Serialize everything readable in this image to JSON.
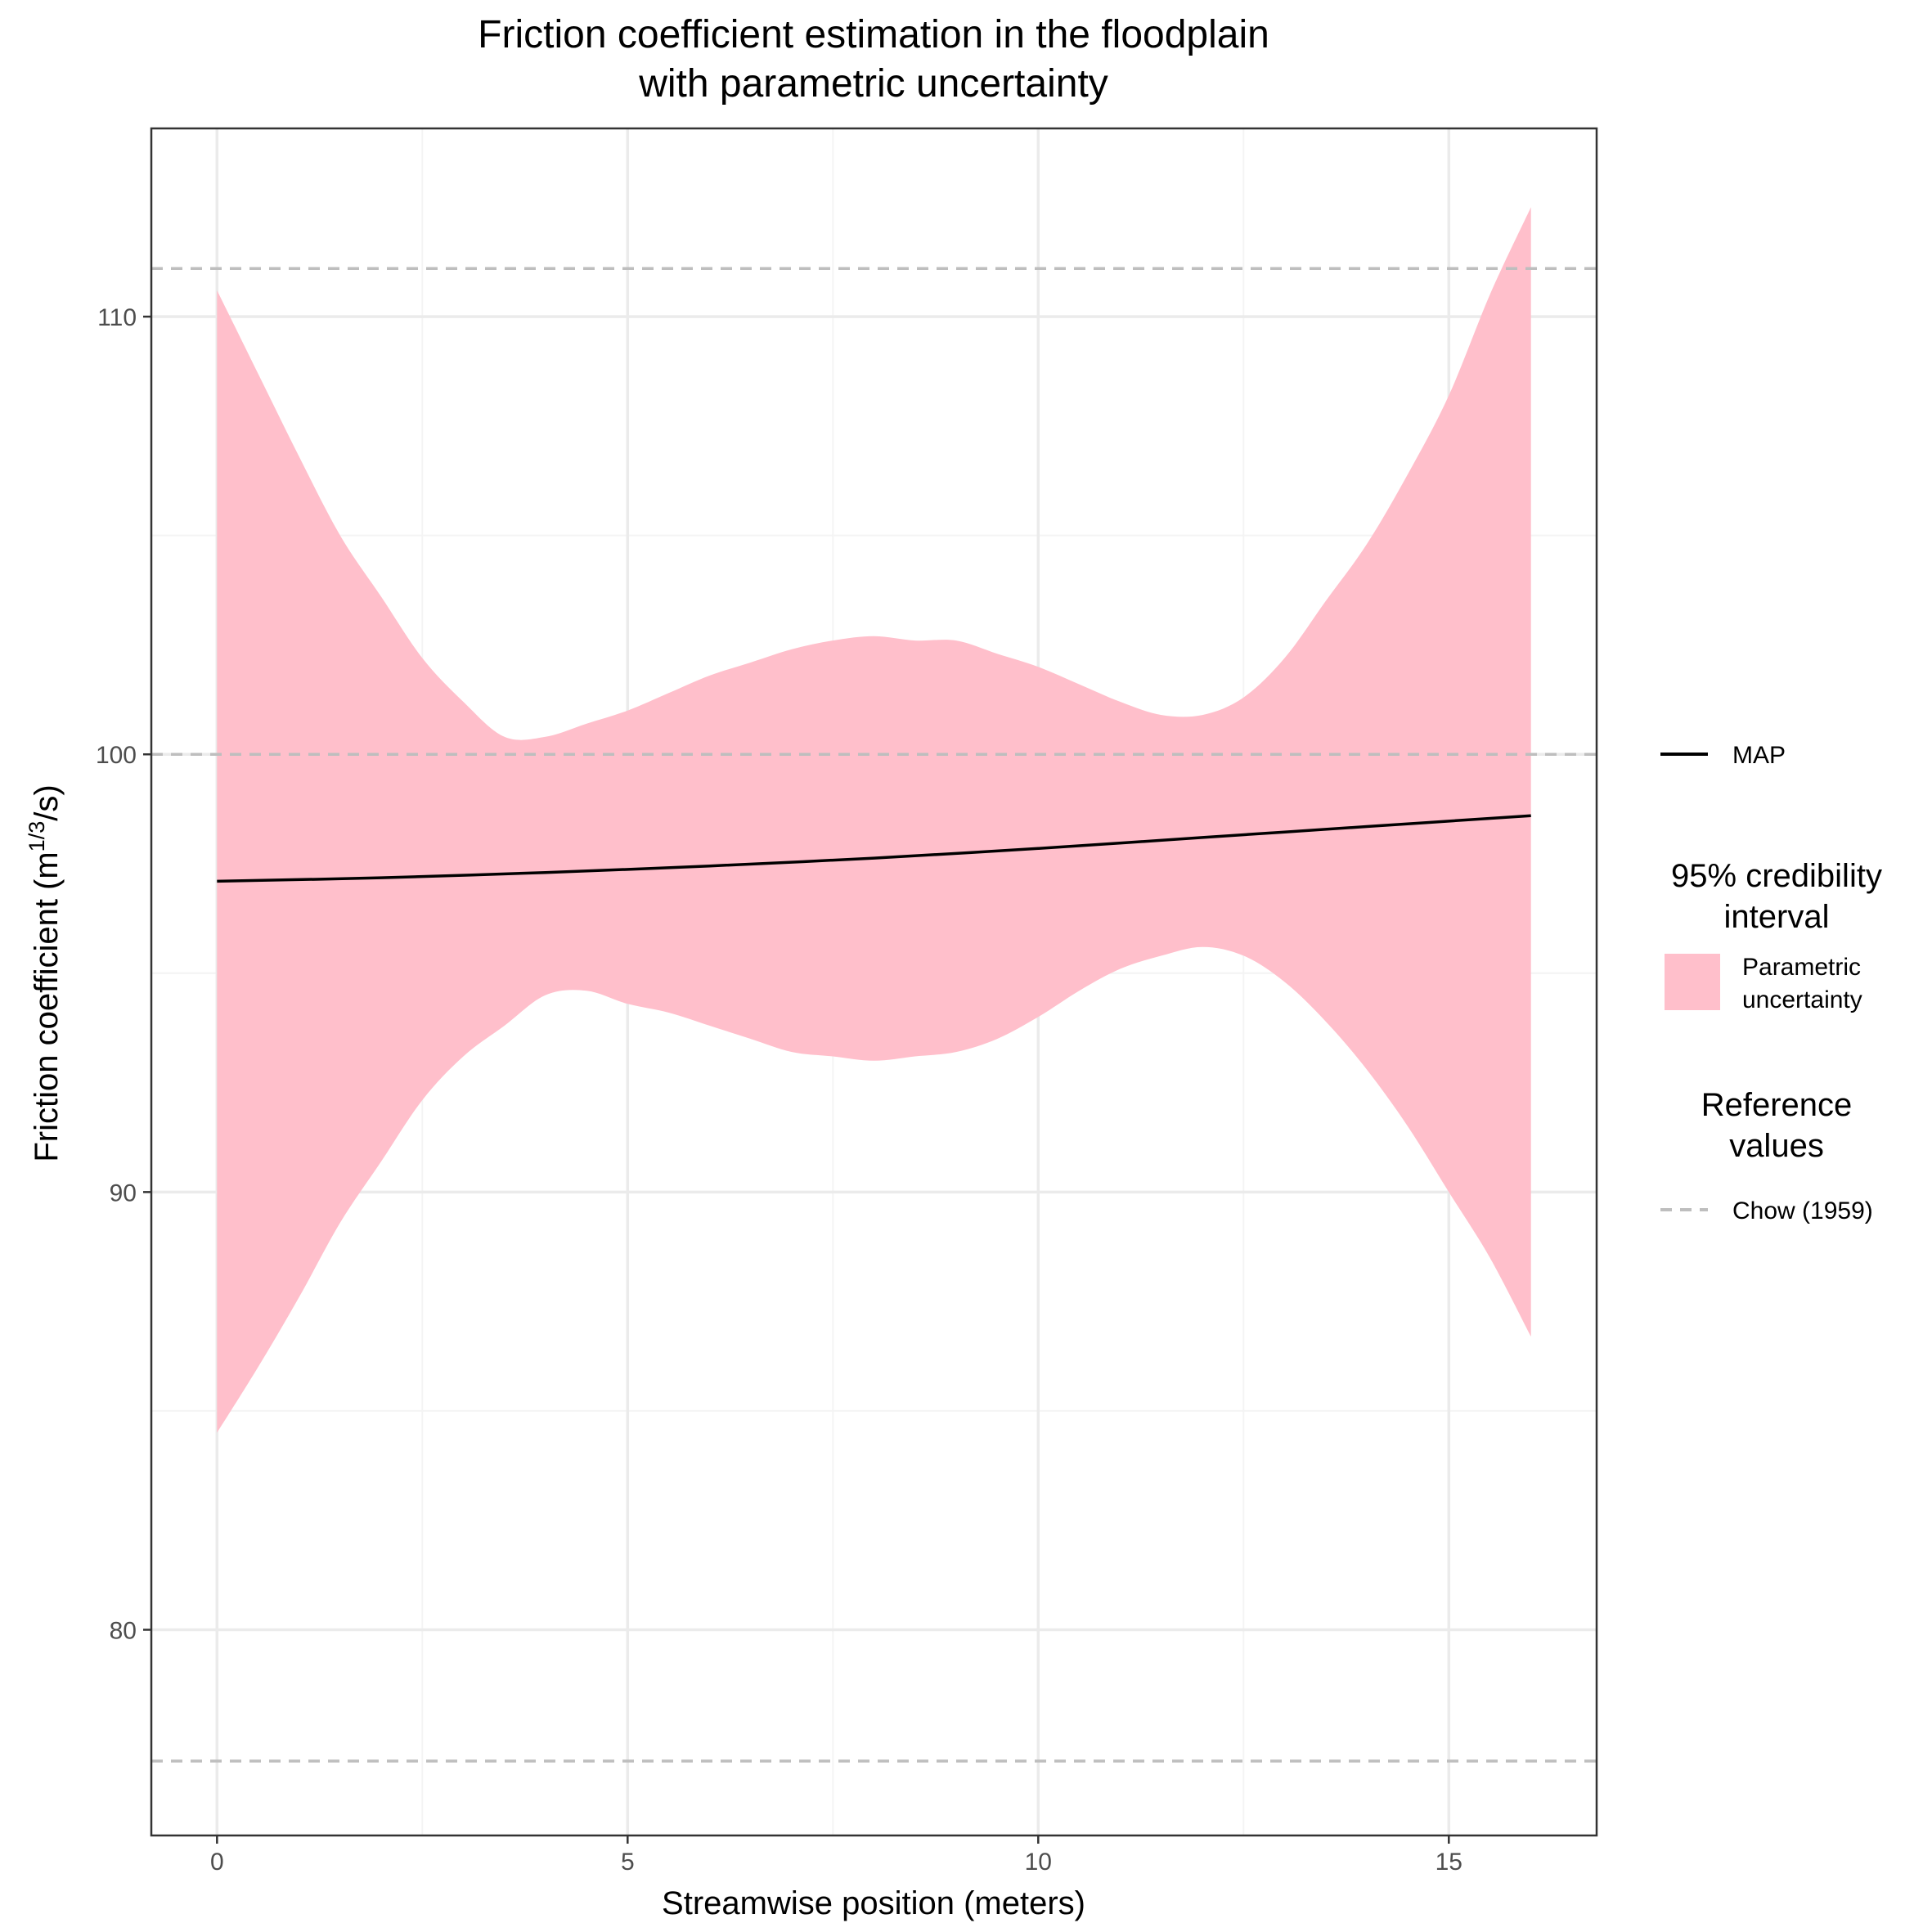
{
  "chart_data": {
    "type": "line",
    "title_lines": [
      "Friction coefficient estimation in the floodplain",
      "with parametric uncertainty"
    ],
    "xlabel": "Streamwise position (meters)",
    "ylabel_main": "Friction coefficient (m",
    "ylabel_sup": "1/3",
    "ylabel_tail": "/s)",
    "xlim": [
      -0.8,
      16.8
    ],
    "ylim": [
      75.3,
      114.3
    ],
    "x_ticks": [
      0,
      5,
      10,
      15
    ],
    "x_tick_labels": [
      "0",
      "5",
      "10",
      "15"
    ],
    "y_ticks": [
      80,
      90,
      100,
      110
    ],
    "y_tick_labels": [
      "80",
      "90",
      "100",
      "110"
    ],
    "x_minor": [
      2.5,
      7.5,
      12.5
    ],
    "y_minor": [
      85,
      95,
      105
    ],
    "grid": true,
    "map_line": {
      "name": "MAP",
      "x": [
        0,
        2,
        4,
        6,
        8,
        10,
        12,
        14,
        16
      ],
      "y": [
        97.1,
        97.18,
        97.3,
        97.45,
        97.63,
        97.85,
        98.1,
        98.35,
        98.6
      ]
    },
    "band": {
      "name": "Parametric uncertainty",
      "x": [
        0,
        0.5,
        1,
        1.5,
        2,
        2.5,
        3,
        3.5,
        4,
        4.5,
        5,
        5.5,
        6,
        6.5,
        7,
        7.5,
        8,
        8.5,
        9,
        9.5,
        10,
        10.5,
        11,
        11.5,
        12,
        12.5,
        13,
        13.5,
        14,
        14.5,
        15,
        15.5,
        16
      ],
      "lower": [
        84.5,
        86,
        87.6,
        89.3,
        90.7,
        92.1,
        93.1,
        93.8,
        94.5,
        94.6,
        94.3,
        94.1,
        93.8,
        93.5,
        93.2,
        93.1,
        93.0,
        93.1,
        93.2,
        93.5,
        94.0,
        94.6,
        95.1,
        95.4,
        95.6,
        95.4,
        94.8,
        93.9,
        92.8,
        91.5,
        90.0,
        88.5,
        86.7
      ],
      "upper": [
        110.6,
        108.7,
        106.8,
        105.0,
        103.6,
        102.2,
        101.2,
        100.4,
        100.4,
        100.7,
        101.0,
        101.4,
        101.8,
        102.1,
        102.4,
        102.6,
        102.7,
        102.6,
        102.6,
        102.3,
        102.0,
        101.6,
        101.2,
        100.9,
        100.9,
        101.3,
        102.2,
        103.5,
        104.8,
        106.4,
        108.2,
        110.5,
        112.5
      ]
    },
    "reference_lines": {
      "name": "Chow (1959)",
      "y": [
        77,
        100,
        111.1
      ]
    },
    "legend": {
      "placement": "right",
      "map_label": "MAP",
      "band_title_lines": [
        "95% credibility",
        "interval"
      ],
      "band_label_lines": [
        "Parametric",
        "uncertainty"
      ],
      "ref_title_lines": [
        "Reference",
        "values"
      ],
      "ref_label": "Chow (1959)"
    },
    "colors": {
      "band": "#ffbfcb",
      "map": "#000000",
      "reference": "#bebebe",
      "grid_major": "#ebebeb",
      "grid_minor": "#f4f4f4",
      "panel_border": "#333333"
    }
  }
}
